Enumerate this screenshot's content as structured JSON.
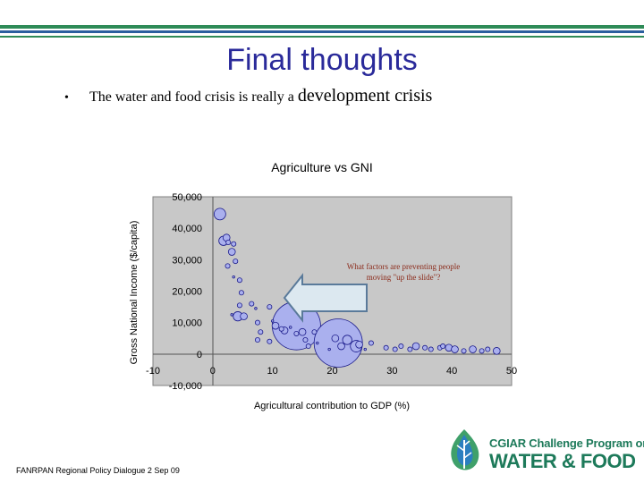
{
  "slide": {
    "title": "Final thoughts",
    "bullet_symbol": "•",
    "bullet_text_main": "The water and food crisis is really a ",
    "bullet_text_emph": "development crisis",
    "footer": "FANRPAN Regional Policy Dialogue 2 Sep 09",
    "logo_line1": "CGIAR Challenge Program on",
    "logo_line2": "WATER & FOOD",
    "colors": {
      "title": "#2a2a9a",
      "band_green": "#2e8b57",
      "band_blue": "#2b5f9e",
      "plot_bg": "#c8c8c8",
      "bubble_fill": "#aab0ee",
      "bubble_edge": "#1a1a8a",
      "arrow_fill": "#dce8f0",
      "arrow_edge": "#5a7a9a",
      "annotation": "#8b2a1a"
    }
  },
  "chart_data": {
    "type": "scatter",
    "title": "Agriculture vs GNI",
    "xlabel": "Agricultural contribution to GDP (%)",
    "ylabel": "Gross National Income ($/capita)",
    "xlim": [
      -10,
      50
    ],
    "ylim": [
      -10000,
      50000
    ],
    "xticks": [
      "-10",
      "0",
      "10",
      "20",
      "30",
      "40",
      "50"
    ],
    "yticks": [
      "-10,000",
      "0",
      "10,000",
      "20,000",
      "30,000",
      "40,000",
      "50,000"
    ],
    "grid": false,
    "annotation": "What factors are preventing people moving \"up the slide\"?",
    "points": [
      {
        "x": 1.2,
        "y": 44500,
        "size": 5
      },
      {
        "x": 1.8,
        "y": 36000,
        "size": 4
      },
      {
        "x": 2.3,
        "y": 37000,
        "size": 3
      },
      {
        "x": 2.6,
        "y": 35500,
        "size": 2
      },
      {
        "x": 3.2,
        "y": 32500,
        "size": 3
      },
      {
        "x": 3.5,
        "y": 35000,
        "size": 2
      },
      {
        "x": 3.8,
        "y": 29500,
        "size": 2
      },
      {
        "x": 2.5,
        "y": 28000,
        "size": 2
      },
      {
        "x": 3.5,
        "y": 24500,
        "size": 1
      },
      {
        "x": 4.5,
        "y": 23500,
        "size": 2
      },
      {
        "x": 4.8,
        "y": 19500,
        "size": 2
      },
      {
        "x": 4.5,
        "y": 15500,
        "size": 2
      },
      {
        "x": 3.2,
        "y": 12500,
        "size": 1
      },
      {
        "x": 4.2,
        "y": 12000,
        "size": 4
      },
      {
        "x": 5.2,
        "y": 12000,
        "size": 3
      },
      {
        "x": 6.5,
        "y": 16000,
        "size": 2
      },
      {
        "x": 7.2,
        "y": 14500,
        "size": 1
      },
      {
        "x": 7.5,
        "y": 10000,
        "size": 2
      },
      {
        "x": 8.0,
        "y": 7000,
        "size": 2
      },
      {
        "x": 7.5,
        "y": 4500,
        "size": 2
      },
      {
        "x": 9.5,
        "y": 15000,
        "size": 2
      },
      {
        "x": 9.5,
        "y": 4000,
        "size": 2
      },
      {
        "x": 10.0,
        "y": 10500,
        "size": 1
      },
      {
        "x": 10.5,
        "y": 9000,
        "size": 3
      },
      {
        "x": 11.5,
        "y": 8000,
        "size": 2
      },
      {
        "x": 12.0,
        "y": 7500,
        "size": 3
      },
      {
        "x": 14.0,
        "y": 9000,
        "size": 18
      },
      {
        "x": 15.0,
        "y": 7000,
        "size": 3
      },
      {
        "x": 14.0,
        "y": 6500,
        "size": 2
      },
      {
        "x": 13.0,
        "y": 8500,
        "size": 1
      },
      {
        "x": 15.5,
        "y": 4500,
        "size": 2
      },
      {
        "x": 17.0,
        "y": 7000,
        "size": 2
      },
      {
        "x": 17.5,
        "y": 3500,
        "size": 1
      },
      {
        "x": 16.0,
        "y": 2500,
        "size": 2
      },
      {
        "x": 19.5,
        "y": 1500,
        "size": 1
      },
      {
        "x": 20.5,
        "y": 5000,
        "size": 3
      },
      {
        "x": 21.0,
        "y": 3500,
        "size": 18
      },
      {
        "x": 21.5,
        "y": 2500,
        "size": 3
      },
      {
        "x": 22.5,
        "y": 4500,
        "size": 4
      },
      {
        "x": 24.0,
        "y": 2500,
        "size": 5
      },
      {
        "x": 24.5,
        "y": 3000,
        "size": 3
      },
      {
        "x": 26.5,
        "y": 3500,
        "size": 2
      },
      {
        "x": 25.5,
        "y": 1500,
        "size": 1
      },
      {
        "x": 29.0,
        "y": 2000,
        "size": 2
      },
      {
        "x": 30.5,
        "y": 1500,
        "size": 2
      },
      {
        "x": 31.5,
        "y": 2500,
        "size": 2
      },
      {
        "x": 33.0,
        "y": 1500,
        "size": 2
      },
      {
        "x": 34.0,
        "y": 2500,
        "size": 3
      },
      {
        "x": 35.5,
        "y": 2000,
        "size": 2
      },
      {
        "x": 36.5,
        "y": 1500,
        "size": 2
      },
      {
        "x": 38.0,
        "y": 2000,
        "size": 2
      },
      {
        "x": 38.5,
        "y": 2500,
        "size": 2
      },
      {
        "x": 39.5,
        "y": 2000,
        "size": 3
      },
      {
        "x": 40.5,
        "y": 1500,
        "size": 3
      },
      {
        "x": 42.0,
        "y": 1000,
        "size": 2
      },
      {
        "x": 43.5,
        "y": 1500,
        "size": 3
      },
      {
        "x": 45.0,
        "y": 1000,
        "size": 2
      },
      {
        "x": 46.0,
        "y": 1500,
        "size": 2
      },
      {
        "x": 47.5,
        "y": 1000,
        "size": 3
      }
    ]
  }
}
